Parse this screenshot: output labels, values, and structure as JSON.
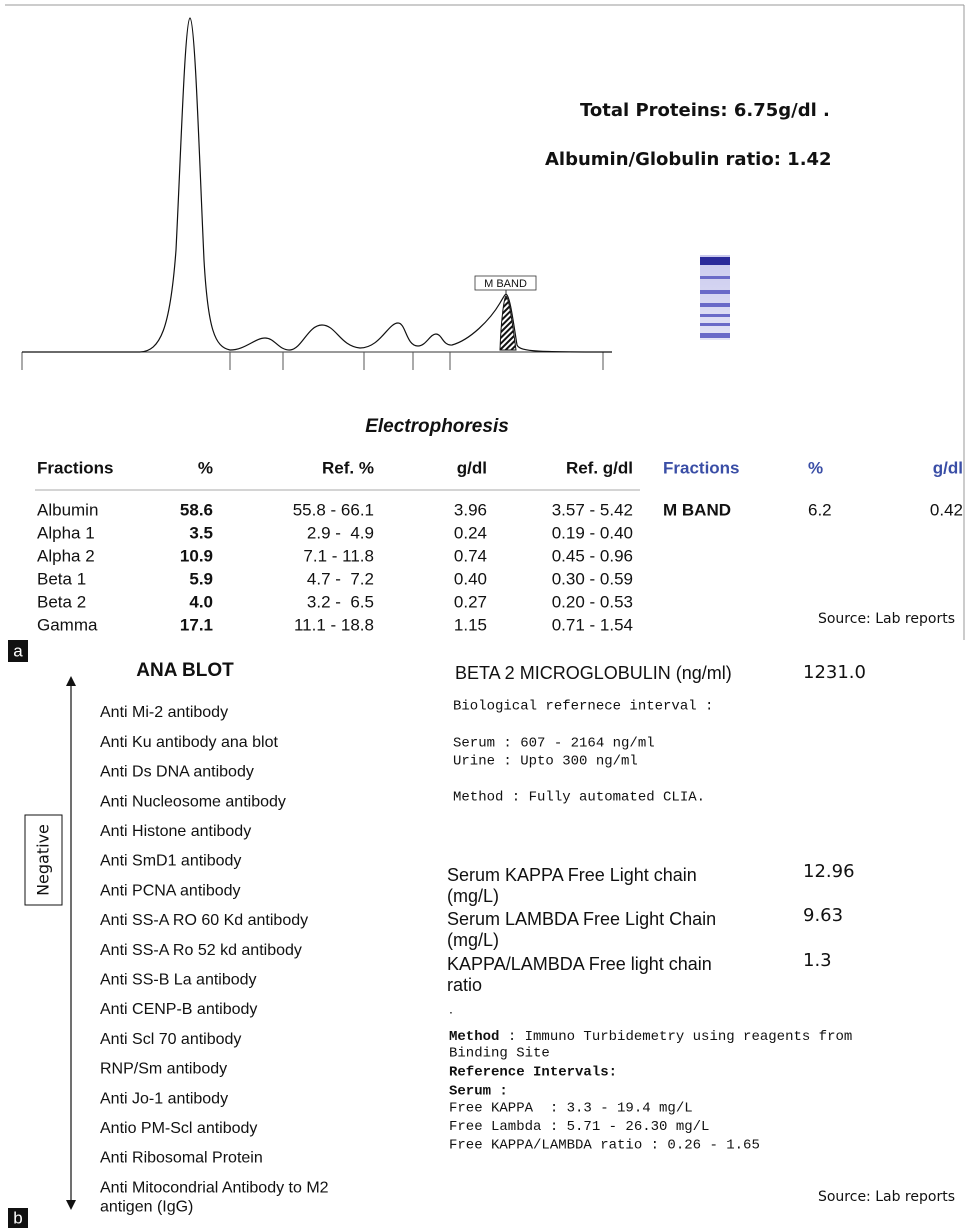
{
  "panel_a": {
    "label": "a",
    "total_proteins": "Total Proteins: 6.75g/dl .",
    "ag_ratio": "Albumin/Globulin ratio: 1.42",
    "m_band_marker": "M BAND",
    "title": "Electrophoresis",
    "table": {
      "headers": [
        "Fractions",
        "%",
        "Ref. %",
        "g/dl",
        "Ref. g/dl"
      ],
      "rows": [
        [
          "Albumin",
          "58.6",
          "55.8 - 66.1",
          "3.96",
          "3.57 - 5.42"
        ],
        [
          "Alpha 1",
          "3.5",
          "2.9 -  4.9",
          "0.24",
          "0.19 - 0.40"
        ],
        [
          "Alpha 2",
          "10.9",
          "7.1 - 11.8",
          "0.74",
          "0.45 - 0.96"
        ],
        [
          "Beta 1",
          "5.9",
          "4.7 -  7.2",
          "0.40",
          "0.30 - 0.59"
        ],
        [
          "Beta 2",
          "4.0",
          "3.2 -  6.5",
          "0.27",
          "0.20 - 0.53"
        ],
        [
          "Gamma",
          "17.1",
          "11.1 - 18.8",
          "1.15",
          "0.71 - 1.54"
        ]
      ]
    },
    "m_band_table": {
      "headers": [
        "Fractions",
        "%",
        "g/dl"
      ],
      "rows": [
        [
          "M BAND",
          "6.2",
          "0.42"
        ]
      ]
    },
    "source": "Source: Lab reports"
  },
  "panel_b": {
    "label": "b",
    "ana_blot": {
      "title": "ANA BLOT",
      "axis_label": "Negative",
      "items": [
        "Anti Mi-2 antibody",
        "Anti Ku antibody  ana blot",
        "Anti Ds DNA antibody",
        "Anti Nucleosome antibody",
        "Anti Histone antibody",
        "Anti SmD1 antibody",
        "Anti PCNA antibody",
        "Anti SS-A RO 60 Kd antibody",
        "Anti SS-A Ro 52 kd antibody",
        "Anti SS-B La antibody",
        "Anti CENP-B antibody",
        "Anti Scl 70 antibody",
        "RNP/Sm antibody",
        "Anti Jo-1 antibody",
        "Antio PM-Scl antibody",
        "Anti Ribosomal Protein",
        [
          "Anti Mitocondrial Antibody to M2",
          "antigen (IgG)"
        ]
      ]
    },
    "beta2": {
      "name": "BETA 2 MICROGLOBULIN  (ng/ml)",
      "value": "1231.0",
      "ref_title": "Biological refernece interval :",
      "ref_serum": "Serum : 607 - 2164 ng/ml",
      "ref_urine": "Urine : Upto 300 ng/ml",
      "method": "Method : Fully automated CLIA."
    },
    "light_chains": [
      {
        "name": [
          "Serum KAPPA Free Light chain",
          "(mg/L)"
        ],
        "value": "12.96"
      },
      {
        "name": [
          "Serum LAMBDA Free Light Chain",
          "(mg/L)"
        ],
        "value": "9.63"
      },
      {
        "name": [
          "KAPPA/LAMBDA Free light chain",
          "ratio"
        ],
        "value": "1.3"
      }
    ],
    "dot": ".",
    "method_label": "Method",
    "method_text": " : Immuno Turbidemetry using reagents from",
    "method_text2": "Binding Site",
    "ref_title": "Reference Intervals:",
    "ref_serum": "Serum :",
    "ref_lines": [
      "Free KAPPA  : 3.3 - 19.4 mg/L",
      "Free Lambda : 5.71 - 26.30 mg/L",
      "Free KAPPA/LAMBDA ratio : 0.26 - 1.65"
    ],
    "source": "Source: Lab reports"
  }
}
